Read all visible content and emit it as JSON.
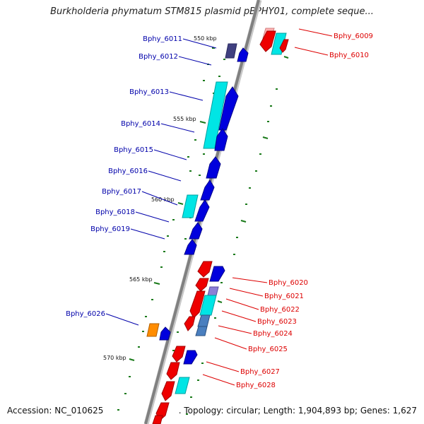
{
  "title": "Burkholderia phymatum STM815 plasmid pBPHY01, complete seque...",
  "footer": {
    "accession": "Accession: NC_010625",
    "summary": ". Topology: circular; Length: 1,904,893 bp; Genes: 1,627"
  },
  "colors": {
    "blue_label": "#0000aa",
    "red_label": "#dd0000",
    "gene_blue": "#0000dd",
    "gene_red": "#ee0000",
    "gene_cyan": "#00e5e5",
    "gene_dark": "#404080",
    "gene_orange": "#ff8c00",
    "gene_steel": "#4a7fbf",
    "gene_lavender": "#8c7fd6",
    "gene_pink": "#ffb0b0",
    "tick": "#1a7a1a",
    "backbone": "#808080"
  },
  "scale_labels": [
    "550 kbp",
    "555 kbp",
    "560 kbp",
    "565 kbp",
    "570 kbp"
  ],
  "left_genes": [
    "Bphy_6011",
    "Bphy_6012",
    "Bphy_6013",
    "Bphy_6014",
    "Bphy_6015",
    "Bphy_6016",
    "Bphy_6017",
    "Bphy_6018",
    "Bphy_6019",
    "Bphy_6026"
  ],
  "right_genes": [
    "Bphy_6009",
    "Bphy_6010",
    "Bphy_6020",
    "Bphy_6021",
    "Bphy_6022",
    "Bphy_6023",
    "Bphy_6024",
    "Bphy_6025",
    "Bphy_6027",
    "Bphy_6028"
  ]
}
